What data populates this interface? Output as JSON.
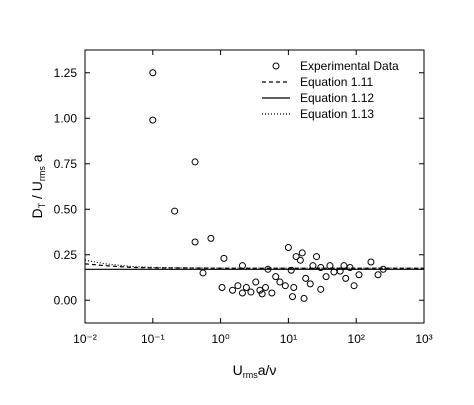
{
  "chart_data": {
    "type": "scatter",
    "xlabel": [
      "U",
      "rms",
      "a/ν"
    ],
    "ylabel": [
      "D",
      "T",
      " / U",
      "rms",
      " a"
    ],
    "log_x": true,
    "xlim": [
      0.01,
      1000
    ],
    "xticks": [
      {
        "value": 0.01,
        "label": "10⁻²"
      },
      {
        "value": 0.1,
        "label": "10⁻¹"
      },
      {
        "value": 1,
        "label": "10⁰"
      },
      {
        "value": 10,
        "label": "10¹"
      },
      {
        "value": 100,
        "label": "10²"
      },
      {
        "value": 1000,
        "label": "10³"
      }
    ],
    "ylim": [
      -0.125,
      1.375
    ],
    "yticks": [
      {
        "value": 0,
        "label": "0.00"
      },
      {
        "value": 0.25,
        "label": "0.25"
      },
      {
        "value": 0.5,
        "label": "0.50"
      },
      {
        "value": 0.75,
        "label": "0.75"
      },
      {
        "value": 1,
        "label": "1.00"
      },
      {
        "value": 1.25,
        "label": "1.25"
      }
    ],
    "legend": "upper right",
    "series": [
      {
        "name": "Experimental Data",
        "kind": "scatter",
        "color": "#000000",
        "x": [
          0.1,
          0.1,
          0.21,
          0.42,
          0.42,
          0.72,
          0.55,
          1.12,
          1.05,
          1.5,
          1.8,
          2.1,
          2.1,
          2.4,
          2.8,
          3.3,
          3.8,
          4.6,
          4.1,
          5,
          5.7,
          6.5,
          7.5,
          9,
          10,
          11,
          11.5,
          12,
          13,
          15,
          16,
          17,
          18,
          21,
          23,
          26,
          30,
          30,
          36,
          41,
          47,
          58,
          66,
          81,
          93,
          110,
          165,
          210,
          250,
          70
        ],
        "values": [
          1.25,
          0.99,
          0.49,
          0.76,
          0.32,
          0.34,
          0.15,
          0.23,
          0.07,
          0.055,
          0.08,
          0.19,
          0.04,
          0.07,
          0.045,
          0.1,
          0.055,
          0.07,
          0.035,
          0.17,
          0.04,
          0.13,
          0.1,
          0.08,
          0.29,
          0.165,
          0.02,
          0.07,
          0.24,
          0.22,
          0.26,
          0.01,
          0.12,
          0.09,
          0.19,
          0.24,
          0.18,
          0.06,
          0.13,
          0.19,
          0.155,
          0.16,
          0.19,
          0.18,
          0.08,
          0.14,
          0.21,
          0.14,
          0.17,
          0.12
        ]
      },
      {
        "name": "Equation 1.11",
        "kind": "line",
        "dash": "4,3",
        "color": "#000000",
        "x": [
          0.01,
          0.02,
          0.05,
          0.1,
          1,
          10,
          100,
          1000
        ],
        "values": [
          0.2,
          0.19,
          0.18,
          0.178,
          0.176,
          0.176,
          0.176,
          0.176
        ]
      },
      {
        "name": "Equation 1.12",
        "kind": "line",
        "dash": "none",
        "color": "#000000",
        "x": [
          0.01,
          0.02,
          0.05,
          0.1,
          1,
          10,
          100,
          1000
        ],
        "values": [
          0.17,
          0.17,
          0.17,
          0.17,
          0.17,
          0.17,
          0.17,
          0.17
        ]
      },
      {
        "name": "Equation 1.13",
        "kind": "line",
        "dash": "1,2",
        "color": "#000000",
        "x": [
          0.01,
          0.02,
          0.05,
          0.1,
          1,
          10,
          100,
          1000
        ],
        "values": [
          0.22,
          0.2,
          0.185,
          0.18,
          0.177,
          0.177,
          0.177,
          0.177
        ]
      }
    ]
  }
}
